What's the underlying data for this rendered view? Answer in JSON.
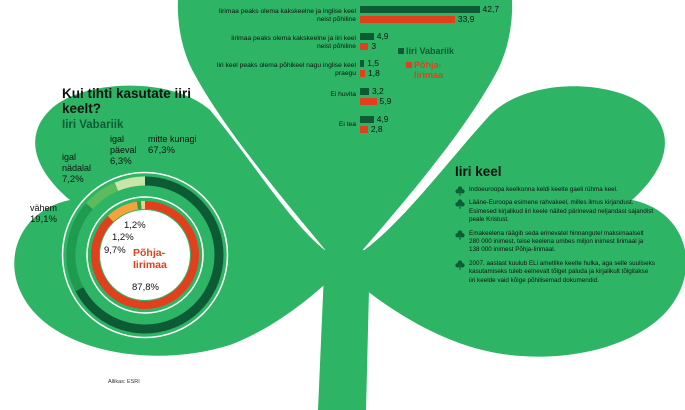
{
  "colors": {
    "background": "#2db565",
    "ireland_dark": "#0d5b35",
    "northern_ireland": "#e2401c",
    "ring_light1": "#c8e6a8",
    "ring_light2": "#5cbb5c",
    "ring_mid": "#1e9b4f",
    "ni_green": "#2d9e4a",
    "ni_orange": "#f4a23a",
    "ni_light": "#f8ca8a"
  },
  "ring_chart": {
    "title": "Kui tihti kasutate iiri keelt?",
    "subtitle": "Iiri Vabariik",
    "ni_label": "Põhja-Iirimaa",
    "source": "Allikas: ESRI"
  },
  "bar_chart": {
    "legend": [
      {
        "name": "Iiri Vabariik",
        "color": "#0d5b35"
      },
      {
        "name": "Põhja-Iirimaa",
        "color": "#e2401c"
      }
    ]
  },
  "chart_data": [
    {
      "type": "pie",
      "title": "Kui tihti kasutate iiri keelt?",
      "series": [
        {
          "name": "Iiri Vabariik",
          "categories": [
            "mitte kunagi",
            "vähem",
            "igal nädalal",
            "igal päeval"
          ],
          "values": [
            67.3,
            19.1,
            7.2,
            6.3
          ],
          "value_labels": [
            "67,3%",
            "19,1%",
            "7,2%",
            "6,3%"
          ]
        },
        {
          "name": "Põhja-Iirimaa",
          "categories": [
            "mitte kunagi",
            "vähem",
            "igal nädalal",
            "igal päeval"
          ],
          "values": [
            87.8,
            9.7,
            1.2,
            1.2
          ],
          "value_labels": [
            "87,8%",
            "9,7%",
            "1,2%",
            "1,2%"
          ]
        }
      ]
    },
    {
      "type": "bar",
      "categories": [
        "Iirimaa peaks olema kakskeelne ja inglise keel neist põhiline",
        "Iirimaa peaks olema kakskeelne ja iiri keel neist põhiline",
        "Iiri keel peaks olema põhikeel nagu inglise keel praegu",
        "Ei huvita",
        "Ei tea"
      ],
      "series": [
        {
          "name": "Iiri Vabariik",
          "values": [
            42.7,
            4.9,
            1.5,
            3.2,
            4.9
          ],
          "value_labels": [
            "42,7",
            "4,9",
            "1,5",
            "3,2",
            "4,9"
          ]
        },
        {
          "name": "Põhja-Iirimaa",
          "values": [
            33.9,
            3,
            1.8,
            5.9,
            2.8
          ],
          "value_labels": [
            "33,9",
            "3",
            "1,8",
            "5,9",
            "2,8"
          ]
        }
      ]
    }
  ],
  "info": {
    "title": "Iiri keel",
    "bullets": [
      "Indoeuroopa keelkonna keldi keelte gaeli rühma keel.",
      "Lääne-Euroopa esimene rahvakeel, milles ilmus kirjandust. Esimesed kirjalikud iiri keele näited pärinevad neljandast sajandist peale Kristust.",
      "Emakeelena räägib seda erinevatel hinnangutel maksimaalselt 280 000 inimest, teise keelena umbes miljon inimest Iirimaal ja 138 000 inimest Põhja-Iirimaal.",
      "2007. aastast kuulub ELi ametlike keelte hulka, aga selle suuliseks kasutamiseks tuleb eelnevalt tõlget paluda ja kirjalikult tõlgitakse iiri keelde vaid kõige põhilisemad dokumendid."
    ]
  }
}
